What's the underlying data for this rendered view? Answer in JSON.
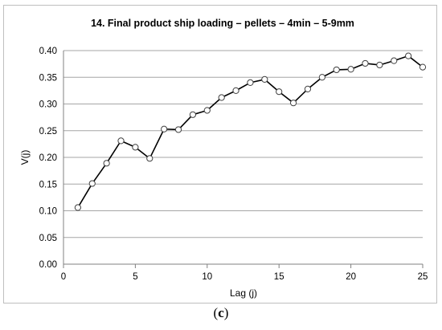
{
  "chart_data": {
    "type": "line",
    "title": "14. Final product ship loading – pellets – 4min – 5-9mm",
    "xlabel": "Lag (j)",
    "ylabel": "V(j)",
    "xlim": [
      0,
      25
    ],
    "ylim": [
      0.0,
      0.4
    ],
    "xticks": [
      "0",
      "5",
      "10",
      "15",
      "20",
      "25"
    ],
    "yticks": [
      "0.00",
      "0.05",
      "0.10",
      "0.15",
      "0.20",
      "0.25",
      "0.30",
      "0.35",
      "0.40"
    ],
    "grid": "horizontal",
    "marker": "open-circle",
    "line_color": "#000000",
    "grid_color": "#a6a6a6",
    "series": [
      {
        "x": [
          1,
          2,
          3,
          4,
          5,
          6,
          7,
          8,
          9,
          10,
          11,
          12,
          13,
          14,
          15,
          16,
          17,
          18,
          19,
          20,
          21,
          22,
          23,
          24,
          25
        ],
        "values": [
          0.106,
          0.151,
          0.189,
          0.231,
          0.219,
          0.198,
          0.253,
          0.252,
          0.28,
          0.288,
          0.312,
          0.325,
          0.34,
          0.346,
          0.323,
          0.302,
          0.328,
          0.35,
          0.364,
          0.365,
          0.376,
          0.373,
          0.381,
          0.39,
          0.369
        ]
      }
    ]
  },
  "caption": {
    "open": "(",
    "letter": "c",
    "close": ")"
  }
}
